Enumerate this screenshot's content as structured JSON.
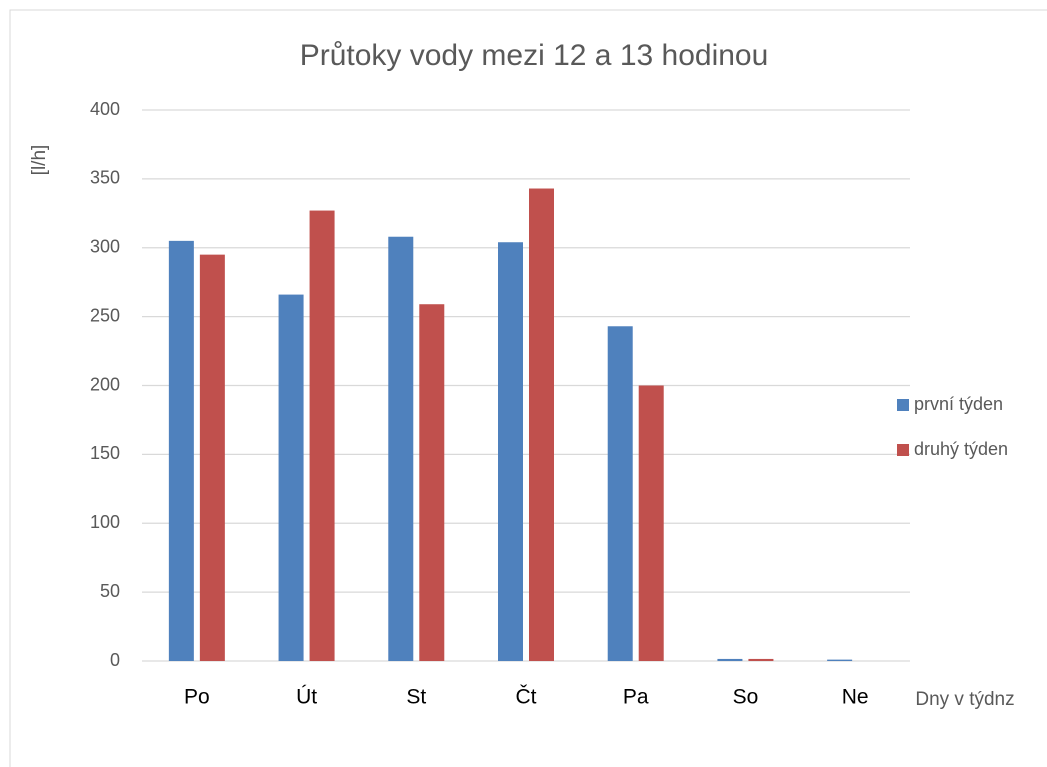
{
  "chart_data": {
    "type": "bar",
    "title": "Průtoky vody mezi 12 a 13 hodinou",
    "y_label": "[l/h]",
    "x_label": "Dny v týdnz",
    "categories": [
      "Po",
      "Út",
      "St",
      "Čt",
      "Pa",
      "So",
      "Ne"
    ],
    "series": [
      {
        "name": "první týden",
        "color": "#4f81bd",
        "values": [
          305,
          266,
          308,
          304,
          243,
          1.5,
          1
        ]
      },
      {
        "name": "druhý týden",
        "color": "#c0504d",
        "values": [
          295,
          327,
          259,
          343,
          200,
          1.5,
          0
        ]
      }
    ],
    "ylim": [
      0,
      400
    ],
    "yticks": [
      0,
      50,
      100,
      150,
      200,
      250,
      300,
      350,
      400
    ],
    "grid": true,
    "legend": "right"
  }
}
